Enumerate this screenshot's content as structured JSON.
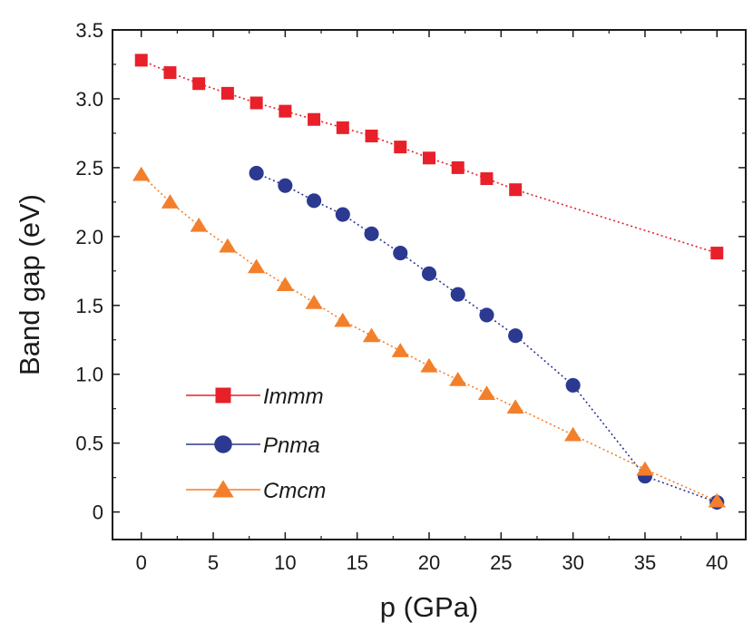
{
  "chart_data": {
    "type": "line",
    "xlabel": "p (GPa)",
    "ylabel": "Band gap (eV)",
    "xlim": [
      -2,
      42
    ],
    "ylim": [
      -0.2,
      3.5
    ],
    "x_ticks": [
      0,
      5,
      10,
      15,
      20,
      25,
      30,
      35,
      40
    ],
    "x_tick_labels": [
      "0",
      "5",
      "10",
      "15",
      "20",
      "25",
      "30",
      "35",
      "40"
    ],
    "y_ticks": [
      0,
      0.5,
      1.0,
      1.5,
      2.0,
      2.5,
      3.0,
      3.5
    ],
    "y_tick_labels": [
      "0",
      "0.5",
      "1.0",
      "1.5",
      "2.0",
      "2.5",
      "3.0",
      "3.5"
    ],
    "grid": false,
    "legend_position": "bottom-left",
    "series": [
      {
        "name": "Immm",
        "marker": "square",
        "color": "#e8202a",
        "x": [
          0,
          2,
          4,
          6,
          8,
          10,
          12,
          14,
          16,
          18,
          20,
          22,
          24,
          26,
          40
        ],
        "y": [
          3.28,
          3.19,
          3.11,
          3.04,
          2.97,
          2.91,
          2.85,
          2.79,
          2.73,
          2.65,
          2.57,
          2.5,
          2.42,
          2.34,
          1.88
        ]
      },
      {
        "name": "Pnma",
        "marker": "circle",
        "color": "#2b3990",
        "x": [
          8,
          10,
          12,
          14,
          16,
          18,
          20,
          22,
          24,
          26,
          30,
          35,
          40
        ],
        "y": [
          2.46,
          2.37,
          2.26,
          2.16,
          2.02,
          1.88,
          1.73,
          1.58,
          1.43,
          1.28,
          0.92,
          0.26,
          0.07
        ]
      },
      {
        "name": "Cmcm",
        "marker": "triangle",
        "color": "#f47f2a",
        "x": [
          0,
          2,
          4,
          6,
          8,
          10,
          12,
          14,
          16,
          18,
          20,
          22,
          24,
          26,
          30,
          35,
          40
        ],
        "y": [
          2.45,
          2.25,
          2.08,
          1.93,
          1.78,
          1.65,
          1.52,
          1.39,
          1.28,
          1.17,
          1.06,
          0.96,
          0.86,
          0.76,
          0.56,
          0.31,
          0.08
        ]
      }
    ]
  }
}
